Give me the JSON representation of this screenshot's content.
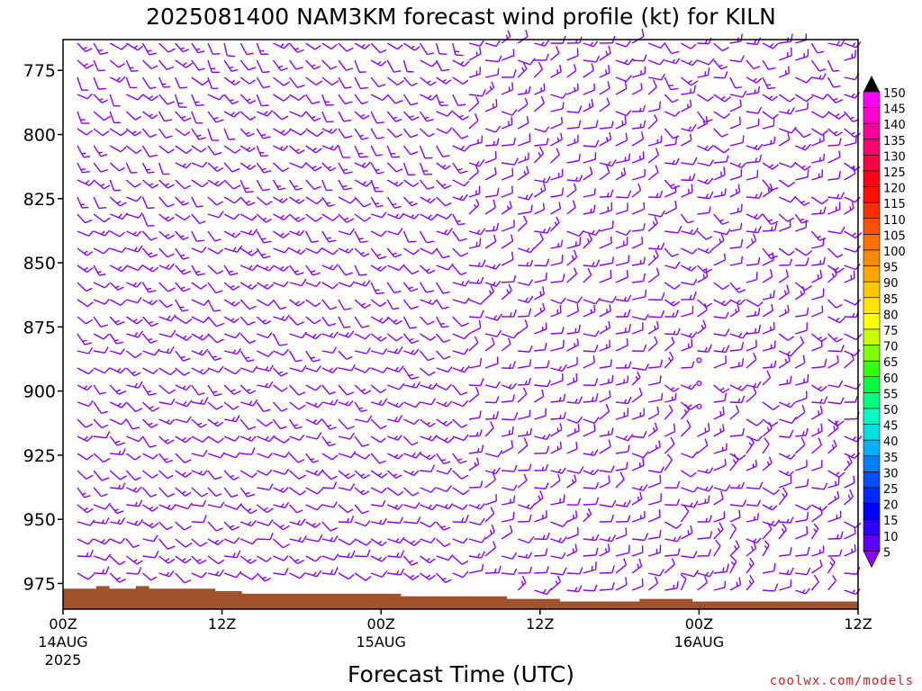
{
  "chart_data": {
    "type": "wind-profile",
    "title": "2025081400 NAM3KM forecast wind profile (kt) for KILN",
    "xlabel": "Forecast Time (UTC)",
    "ylabel": "",
    "watermark": "coolwx.com/models",
    "y_axis": {
      "unit": "hPa",
      "reversed": true,
      "range": [
        763,
        985
      ],
      "ticks": [
        775,
        800,
        825,
        850,
        875,
        900,
        925,
        950,
        975
      ],
      "tick_labels": [
        "775",
        "800",
        "825",
        "850",
        "875",
        "900",
        "925",
        "950",
        "975"
      ]
    },
    "x_axis": {
      "unit": "forecast hour",
      "range": [
        0,
        60
      ],
      "ticks": [
        {
          "hour": 0,
          "label": "00Z",
          "sub1": "14AUG",
          "sub2": "2025"
        },
        {
          "hour": 12,
          "label": "12Z",
          "sub1": "",
          "sub2": ""
        },
        {
          "hour": 24,
          "label": "00Z",
          "sub1": "15AUG",
          "sub2": ""
        },
        {
          "hour": 36,
          "label": "12Z",
          "sub1": "",
          "sub2": ""
        },
        {
          "hour": 48,
          "label": "00Z",
          "sub1": "16AUG",
          "sub2": ""
        },
        {
          "hour": 60,
          "label": "12Z",
          "sub1": "",
          "sub2": ""
        }
      ]
    },
    "colorbar": {
      "unit": "kt",
      "levels": [
        150,
        145,
        140,
        135,
        130,
        125,
        120,
        115,
        110,
        105,
        100,
        95,
        90,
        85,
        80,
        75,
        70,
        65,
        60,
        55,
        50,
        45,
        40,
        35,
        30,
        25,
        20,
        15,
        10,
        5
      ],
      "colors": [
        "#ff00ff",
        "#ff00d0",
        "#ff00a0",
        "#ff0070",
        "#ff0040",
        "#ff0018",
        "#ff1000",
        "#ff3000",
        "#ff5000",
        "#ff7000",
        "#ff8c00",
        "#ffa500",
        "#ffc800",
        "#ffe600",
        "#ffff00",
        "#c8ff00",
        "#80ff00",
        "#30ff00",
        "#00ff40",
        "#00ff80",
        "#00ffc0",
        "#00e0e0",
        "#00b0ff",
        "#0080ff",
        "#0050ff",
        "#0028ff",
        "#0000ff",
        "#3000ff",
        "#6000ff",
        "#9000ff"
      ],
      "top_arrow_color": "#000000",
      "bottom_arrow_color": "#9000ff"
    },
    "barb_color": "#8a00ff",
    "terrain_color": "#a0522d",
    "surface_pressure": [
      {
        "hour": 0,
        "p": 977
      },
      {
        "hour": 2.5,
        "p": 976
      },
      {
        "hour": 3.5,
        "p": 977
      },
      {
        "hour": 5.5,
        "p": 976
      },
      {
        "hour": 6.5,
        "p": 977
      },
      {
        "hour": 11.5,
        "p": 978
      },
      {
        "hour": 13.5,
        "p": 979
      },
      {
        "hour": 25.5,
        "p": 980
      },
      {
        "hour": 33.5,
        "p": 981
      },
      {
        "hour": 37.5,
        "p": 982
      },
      {
        "hour": 43.5,
        "p": 981
      },
      {
        "hour": 47.5,
        "p": 982
      },
      {
        "hour": 60,
        "p": 982
      }
    ],
    "calm_points": [
      {
        "hour": 48,
        "p": 888
      },
      {
        "hour": 48,
        "p": 897
      },
      {
        "hour": 48,
        "p": 906
      }
    ]
  }
}
